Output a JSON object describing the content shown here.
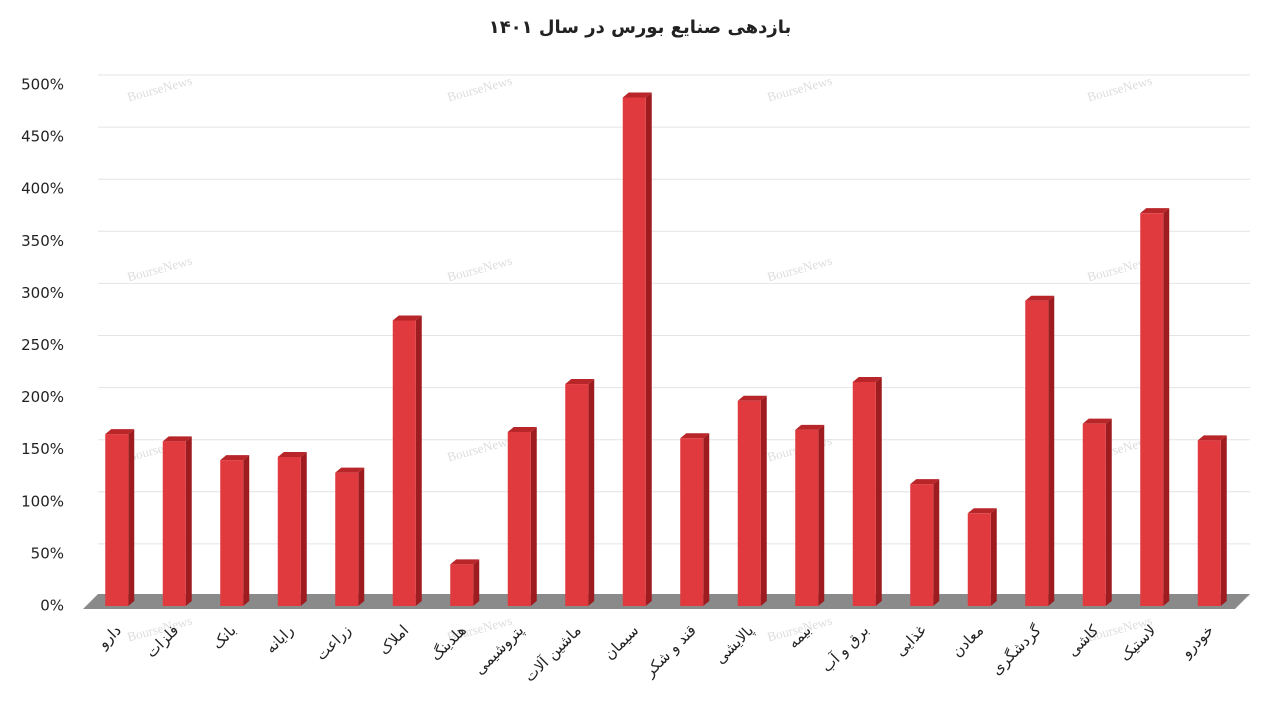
{
  "chart_data": {
    "type": "bar3d",
    "title": "بازدهی صنایع بورس در سال ۱۴۰۱",
    "watermark": "BourseNews",
    "categories": [
      "دارو",
      "فلزات",
      "بانک",
      "رایانه",
      "زراعت",
      "املاک",
      "هلدینگ",
      "پتروشیمی",
      "ماشین آلات",
      "سیمان",
      "قند و شکر",
      "پالایشی",
      "بیمه",
      "برق و آب",
      "غذایی",
      "معادن",
      "گردشگری",
      "کاشی",
      "لاستیک",
      "خودرو"
    ],
    "values": [
      165,
      158,
      140,
      143,
      128,
      274,
      40,
      167,
      213,
      488,
      161,
      197,
      169,
      215,
      117,
      89,
      293,
      175,
      377,
      159
    ],
    "color": "#e0393e",
    "ylim": [
      0,
      500
    ],
    "yticks": [
      {
        "value": 0,
        "label": "0%"
      },
      {
        "value": 50,
        "label": "50%"
      },
      {
        "value": 100,
        "label": "100%"
      },
      {
        "value": 150,
        "label": "150%"
      },
      {
        "value": 200,
        "label": "200%"
      },
      {
        "value": 250,
        "label": "250%"
      },
      {
        "value": 300,
        "label": "300%"
      },
      {
        "value": 350,
        "label": "350%"
      },
      {
        "value": 400,
        "label": "400%"
      },
      {
        "value": 450,
        "label": "450%"
      },
      {
        "value": 500,
        "label": "500%"
      }
    ],
    "grid": true
  }
}
